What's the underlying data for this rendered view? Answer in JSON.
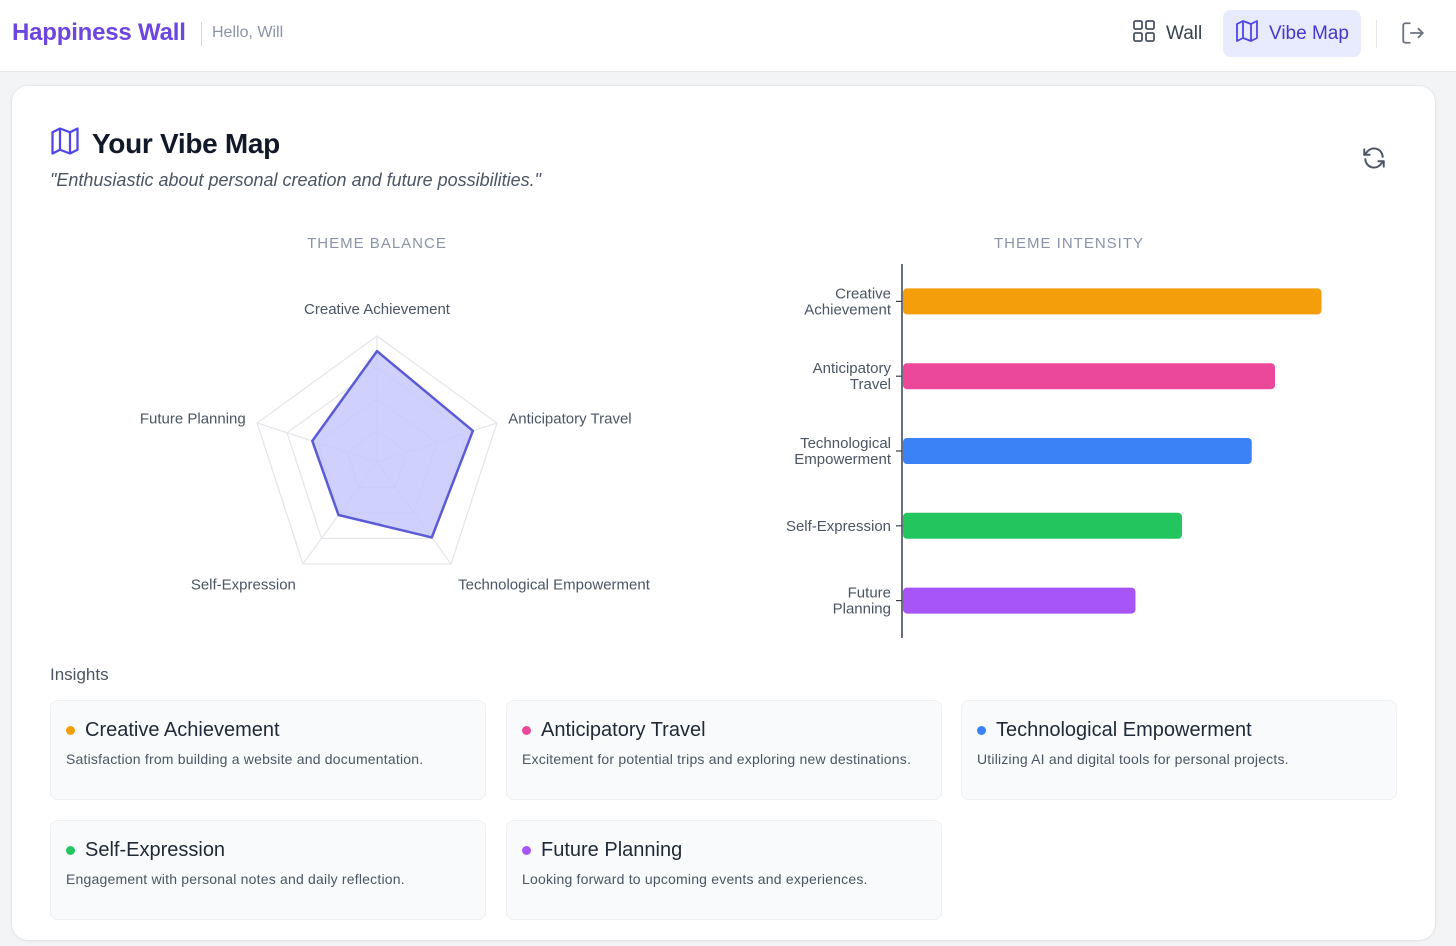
{
  "header": {
    "brand": "Happiness Wall",
    "greeting": "Hello, Will",
    "nav": [
      {
        "label": "Wall",
        "icon": "grid-icon",
        "active": false
      },
      {
        "label": "Vibe Map",
        "icon": "map-icon",
        "active": true
      }
    ],
    "logout_icon": "logout-icon"
  },
  "vibe_map": {
    "title": "Your Vibe Map",
    "quote": "\"Enthusiastic about personal creation and future possibilities.\"",
    "refresh_icon": "refresh-icon",
    "radar_heading": "THEME BALANCE",
    "bar_heading": "THEME INTENSITY"
  },
  "chart_data": [
    {
      "type": "radar",
      "title": "THEME BALANCE",
      "categories": [
        "Creative Achievement",
        "Anticipatory Travel",
        "Technological Empowerment",
        "Self-Expression",
        "Future Planning"
      ],
      "values": [
        88,
        80,
        74,
        52,
        54
      ],
      "range": [
        0,
        100
      ],
      "rings": 4,
      "color": "#5b5bd6",
      "fill": "#c7c9fb"
    },
    {
      "type": "bar",
      "orientation": "horizontal",
      "title": "THEME INTENSITY",
      "categories": [
        [
          "Creative",
          "Achievement"
        ],
        [
          "Anticipatory",
          "Travel"
        ],
        [
          "Technological",
          "Empowerment"
        ],
        [
          "Self-Expression"
        ],
        [
          "Future",
          "Planning"
        ]
      ],
      "values": [
        90,
        80,
        75,
        60,
        50
      ],
      "xlim": [
        0,
        100
      ],
      "colors": [
        "#f59e0b",
        "#ec4899",
        "#3b82f6",
        "#22c55e",
        "#a855f7"
      ]
    }
  ],
  "insights": {
    "label": "Insights",
    "items": [
      {
        "title": "Creative Achievement",
        "desc": "Satisfaction from building a website and documentation.",
        "color": "#f59e0b"
      },
      {
        "title": "Anticipatory Travel",
        "desc": "Excitement for potential trips and exploring new destinations.",
        "color": "#ec4899"
      },
      {
        "title": "Technological Empowerment",
        "desc": "Utilizing AI and digital tools for personal projects.",
        "color": "#3b82f6"
      },
      {
        "title": "Self-Expression",
        "desc": "Engagement with personal notes and daily reflection.",
        "color": "#22c55e"
      },
      {
        "title": "Future Planning",
        "desc": "Looking forward to upcoming events and experiences.",
        "color": "#a855f7"
      }
    ]
  }
}
